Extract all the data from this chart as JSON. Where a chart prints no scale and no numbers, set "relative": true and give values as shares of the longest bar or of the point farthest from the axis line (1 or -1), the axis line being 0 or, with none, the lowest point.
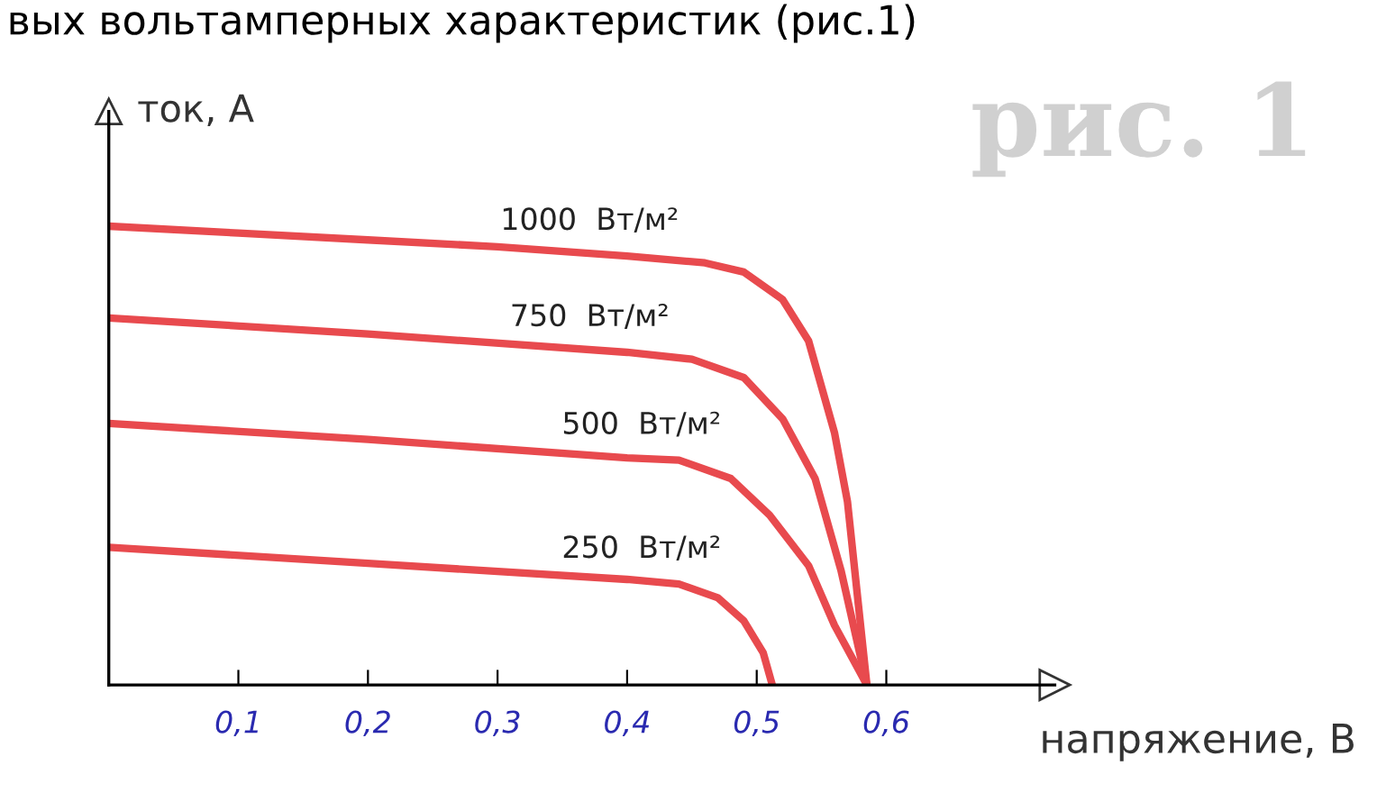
{
  "chart_data": {
    "type": "line",
    "title": "вых вольтамперных характеристик (рис.1)",
    "xlabel": "напряжение, В",
    "ylabel": "ток, А",
    "relative": true,
    "grid": false,
    "legend": false,
    "marker": "none",
    "line_style": "solid",
    "annotations": [
      "рис. 1"
    ],
    "xlim": [
      0,
      0.73
    ],
    "xticks": [
      {
        "value": 0.1,
        "label": "0,1"
      },
      {
        "value": 0.2,
        "label": "0,2"
      },
      {
        "value": 0.3,
        "label": "0,3"
      },
      {
        "value": 0.4,
        "label": "0,4"
      },
      {
        "value": 0.5,
        "label": "0,5"
      },
      {
        "value": 0.6,
        "label": "0,6"
      }
    ],
    "tick_labels": "x",
    "series": [
      {
        "name": "1000  Вт/м²",
        "color": "#e84a4e",
        "x": [
          0,
          0.1,
          0.2,
          0.3,
          0.4,
          0.46,
          0.49,
          0.52,
          0.54,
          0.56,
          0.57,
          0.585
        ],
        "values": [
          1.0,
          0.985,
          0.97,
          0.955,
          0.935,
          0.92,
          0.9,
          0.84,
          0.75,
          0.55,
          0.4,
          0
        ]
      },
      {
        "name": "750  Вт/м²",
        "color": "#e84a4e",
        "x": [
          0,
          0.2,
          0.4,
          0.45,
          0.49,
          0.52,
          0.545,
          0.565,
          0.585
        ],
        "values": [
          0.8,
          0.765,
          0.725,
          0.71,
          0.67,
          0.58,
          0.45,
          0.25,
          0
        ]
      },
      {
        "name": "500  Вт/м²",
        "color": "#e84a4e",
        "x": [
          0,
          0.2,
          0.4,
          0.44,
          0.48,
          0.51,
          0.54,
          0.56,
          0.585
        ],
        "values": [
          0.57,
          0.535,
          0.495,
          0.49,
          0.45,
          0.37,
          0.26,
          0.13,
          0
        ]
      },
      {
        "name": "250  Вт/м²",
        "color": "#e84a4e",
        "x": [
          0,
          0.2,
          0.4,
          0.44,
          0.47,
          0.49,
          0.505,
          0.512
        ],
        "values": [
          0.3,
          0.265,
          0.23,
          0.22,
          0.19,
          0.14,
          0.07,
          0
        ]
      }
    ]
  }
}
